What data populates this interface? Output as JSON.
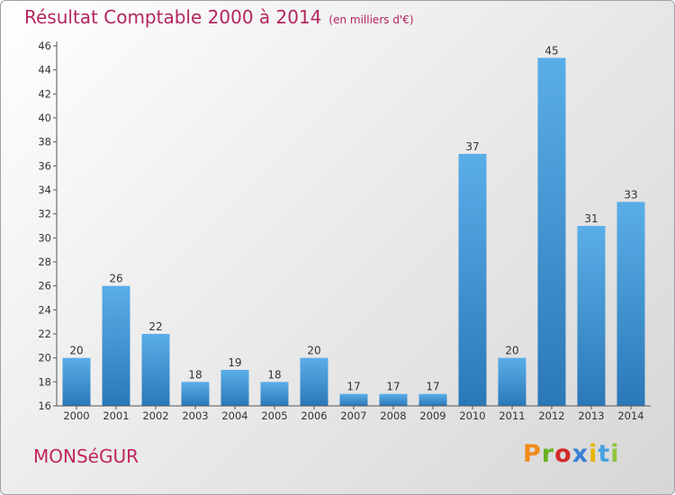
{
  "header": {
    "title": "Résultat Comptable 2000 à 2014",
    "unit": "(en milliers d'€)"
  },
  "footer": {
    "commune": "MONSéGUR",
    "brand": "Proxiti",
    "brand_colors": [
      "#f28a1b",
      "#6ab023",
      "#d42a2a",
      "#3a7fd5",
      "#e8b600",
      "#4aa3df",
      "#8ec63f"
    ]
  },
  "colors": {
    "title": "#b3255f",
    "bar_light": "#5aaee8",
    "bar_dark": "#2b78b8",
    "axis": "#444444"
  },
  "chart_data": {
    "type": "bar",
    "categories": [
      "2000",
      "2001",
      "2002",
      "2003",
      "2004",
      "2005",
      "2006",
      "2007",
      "2008",
      "2009",
      "2010",
      "2011",
      "2012",
      "2013",
      "2014"
    ],
    "values": [
      20,
      26,
      22,
      18,
      19,
      18,
      20,
      17,
      17,
      17,
      37,
      20,
      45,
      31,
      33
    ],
    "data_labels": [
      "20",
      "26",
      "22",
      "18",
      "19",
      "18",
      "20",
      "17",
      "17",
      "17",
      "37",
      "20",
      "45",
      "31",
      "33"
    ],
    "title": "Résultat Comptable 2000 à 2014",
    "ylim": [
      16,
      46
    ],
    "yticks": [
      16,
      18,
      20,
      22,
      24,
      26,
      28,
      30,
      32,
      34,
      36,
      38,
      40,
      42,
      44,
      46
    ],
    "grid": false,
    "legend": "none"
  }
}
